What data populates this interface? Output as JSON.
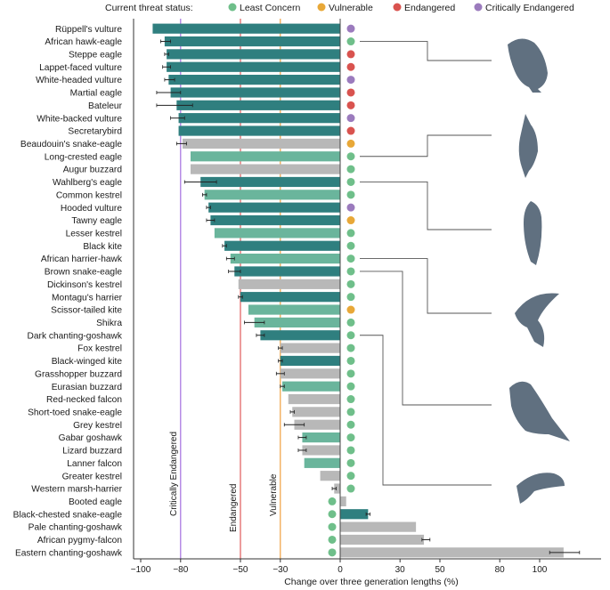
{
  "chart_data": {
    "type": "bar",
    "orientation": "horizontal",
    "xlabel": "Change over three generation lengths (%)",
    "xlim": [
      -110,
      120
    ],
    "xticks": [
      -100,
      -80,
      -50,
      -30,
      0,
      30,
      50,
      80,
      100
    ],
    "legend": {
      "title": "Current threat status:",
      "placement": "top",
      "items": [
        {
          "label": "Least Concern",
          "color": "#6fbf8a"
        },
        {
          "label": "Vulnerable",
          "color": "#e8a838"
        },
        {
          "label": "Endangered",
          "color": "#d9534f"
        },
        {
          "label": "Critically Endangered",
          "color": "#9b7bbd"
        }
      ]
    },
    "thresholds": [
      {
        "label": "Critically Endangered",
        "value": -80,
        "color": "#a46ee0"
      },
      {
        "label": "Endangered",
        "value": -50,
        "color": "#e05a5a"
      },
      {
        "label": "Vulnerable",
        "value": -30,
        "color": "#f0a040"
      }
    ],
    "bar_colors": {
      "dark": "#2f7f7f",
      "light": "#6ab59c",
      "grey": "#b8b8b8"
    },
    "categories": [
      "Rüppell's vulture",
      "African hawk-eagle",
      "Steppe eagle",
      "Lappet-faced vulture",
      "White-headed vulture",
      "Martial eagle",
      "Bateleur",
      "White-backed vulture",
      "Secretarybird",
      "Beaudouin's snake-eagle",
      "Long-crested eagle",
      "Augur buzzard",
      "Wahlberg's eagle",
      "Common kestrel",
      "Hooded vulture",
      "Tawny eagle",
      "Lesser kestrel",
      "Black kite",
      "African harrier-hawk",
      "Brown snake-eagle",
      "Dickinson's kestrel",
      "Montagu's harrier",
      "Scissor-tailed kite",
      "Shikra",
      "Dark chanting-goshawk",
      "Fox kestrel",
      "Black-winged kite",
      "Grasshopper buzzard",
      "Eurasian buzzard",
      "Red-necked falcon",
      "Short-toed snake-eagle",
      "Grey kestrel",
      "Gabar goshawk",
      "Lizard buzzard",
      "Lanner falcon",
      "Greater kestrel",
      "Western marsh-harrier",
      "Booted eagle",
      "Black-chested snake-eagle",
      "Pale chanting-goshawk",
      "African pygmy-falcon",
      "Eastern chanting-goshawk"
    ],
    "values": [
      -94,
      -88,
      -87,
      -87,
      -86,
      -85,
      -82,
      -81,
      -81,
      -79,
      -75,
      -75,
      -70,
      -68,
      -66,
      -65,
      -63,
      -58,
      -55,
      -53,
      -51,
      -50,
      -46,
      -43,
      -40,
      -30,
      -30,
      -30,
      -29,
      -26,
      -24,
      -23,
      -19,
      -19,
      -18,
      -10,
      -3,
      3,
      14,
      38,
      42,
      112
    ],
    "bar_style": [
      "dark",
      "dark",
      "dark",
      "dark",
      "dark",
      "dark",
      "dark",
      "dark",
      "dark",
      "grey",
      "light",
      "grey",
      "dark",
      "light",
      "dark",
      "dark",
      "light",
      "dark",
      "light",
      "dark",
      "grey",
      "dark",
      "light",
      "light",
      "dark",
      "grey",
      "dark",
      "grey",
      "light",
      "grey",
      "grey",
      "grey",
      "light",
      "grey",
      "light",
      "grey",
      "grey",
      "grey",
      "dark",
      "grey",
      "grey",
      "grey"
    ],
    "error_low": [
      -94,
      -90,
      -88,
      -89,
      -88,
      -92,
      -92,
      -85,
      -81,
      -82,
      -75,
      -75,
      -78,
      -69,
      -67,
      -67,
      -63,
      -59,
      -57,
      -56,
      -51,
      -51,
      -46,
      -48,
      -42,
      -31,
      -31,
      -32,
      -30,
      -26,
      -25,
      -28,
      -21,
      -21,
      -18,
      -10,
      -4,
      3,
      13,
      38,
      41,
      105
    ],
    "error_high": [
      -94,
      -85,
      -86,
      -85,
      -83,
      -80,
      -74,
      -78,
      -81,
      -77,
      -75,
      -75,
      -62,
      -67,
      -65,
      -63,
      -63,
      -57,
      -53,
      -50,
      -51,
      -49,
      -46,
      -38,
      -38,
      -29,
      -29,
      -28,
      -28,
      -26,
      -23,
      -18,
      -17,
      -17,
      -18,
      -10,
      -2,
      3,
      15,
      38,
      45,
      120
    ],
    "status": [
      "CE",
      "LC",
      "E",
      "E",
      "CE",
      "E",
      "E",
      "CE",
      "E",
      "V",
      "LC",
      "LC",
      "LC",
      "LC",
      "CE",
      "V",
      "LC",
      "LC",
      "LC",
      "LC",
      "LC",
      "LC",
      "V",
      "LC",
      "LC",
      "LC",
      "LC",
      "LC",
      "LC",
      "LC",
      "LC",
      "LC",
      "LC",
      "LC",
      "LC",
      "LC",
      "LC",
      "LC",
      "LC",
      "LC",
      "LC",
      "LC"
    ]
  }
}
